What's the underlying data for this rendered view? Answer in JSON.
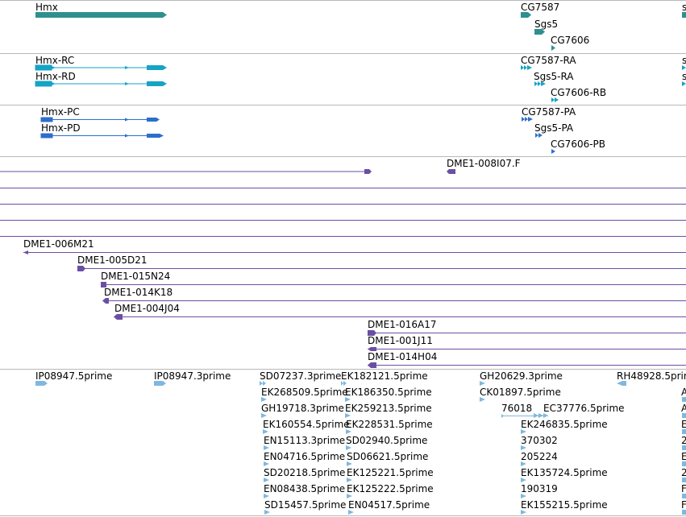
{
  "colors": {
    "gene": "#2f8f8f",
    "transcript": "#16a3c4",
    "protein": "#2c6fcc",
    "bac": "#6a4fa3",
    "est": "#7fb8de",
    "separator": "#b8b8b8"
  },
  "gene_track": {
    "features": [
      "Hmx",
      "CG7587",
      "Sgs5",
      "CG7606",
      "s"
    ]
  },
  "transcript_track": {
    "features": [
      "Hmx-RC",
      "Hmx-RD",
      "CG7587-RA",
      "Sgs5-RA",
      "CG7606-RB",
      "s",
      "s"
    ]
  },
  "protein_track": {
    "features": [
      "Hmx-PC",
      "Hmx-PD",
      "CG7587-PA",
      "Sgs5-PA",
      "CG7606-PB"
    ]
  },
  "bac_track": {
    "features": [
      "DME1-008I07.F",
      "DME1-006M21",
      "DME1-005D21",
      "DME1-015N24",
      "DME1-014K18",
      "DME1-004J04",
      "DME1-016A17",
      "DME1-001J11",
      "DME1-014H04"
    ]
  },
  "est_track": {
    "features": [
      "IP08947.5prime",
      "IP08947.3prime",
      "SD07237.3prime",
      "EK268509.5prime",
      "GH19718.3prime",
      "EK160554.5prime",
      "EN15113.3prime",
      "EN04716.5prime",
      "SD20218.5prime",
      "EN08438.5prime",
      "SD15457.5prime",
      "EK182121.5prime",
      "EK186350.5prime",
      "EK259213.5prime",
      "EK228531.5prime",
      "SD02940.5prime",
      "SD06621.5prime",
      "EK125221.5prime",
      "EK125222.5prime",
      "EN04517.5prime",
      "GH20629.3prime",
      "CK01897.5prime",
      "76018",
      "EC37776.5prime",
      "EK246835.5prime",
      "370302",
      "205224",
      "EK135724.5prime",
      "190319",
      "EK155215.5prime",
      "RH48928.5prim",
      "A",
      "A",
      "E",
      "2",
      "E",
      "2",
      "F",
      "F"
    ]
  }
}
